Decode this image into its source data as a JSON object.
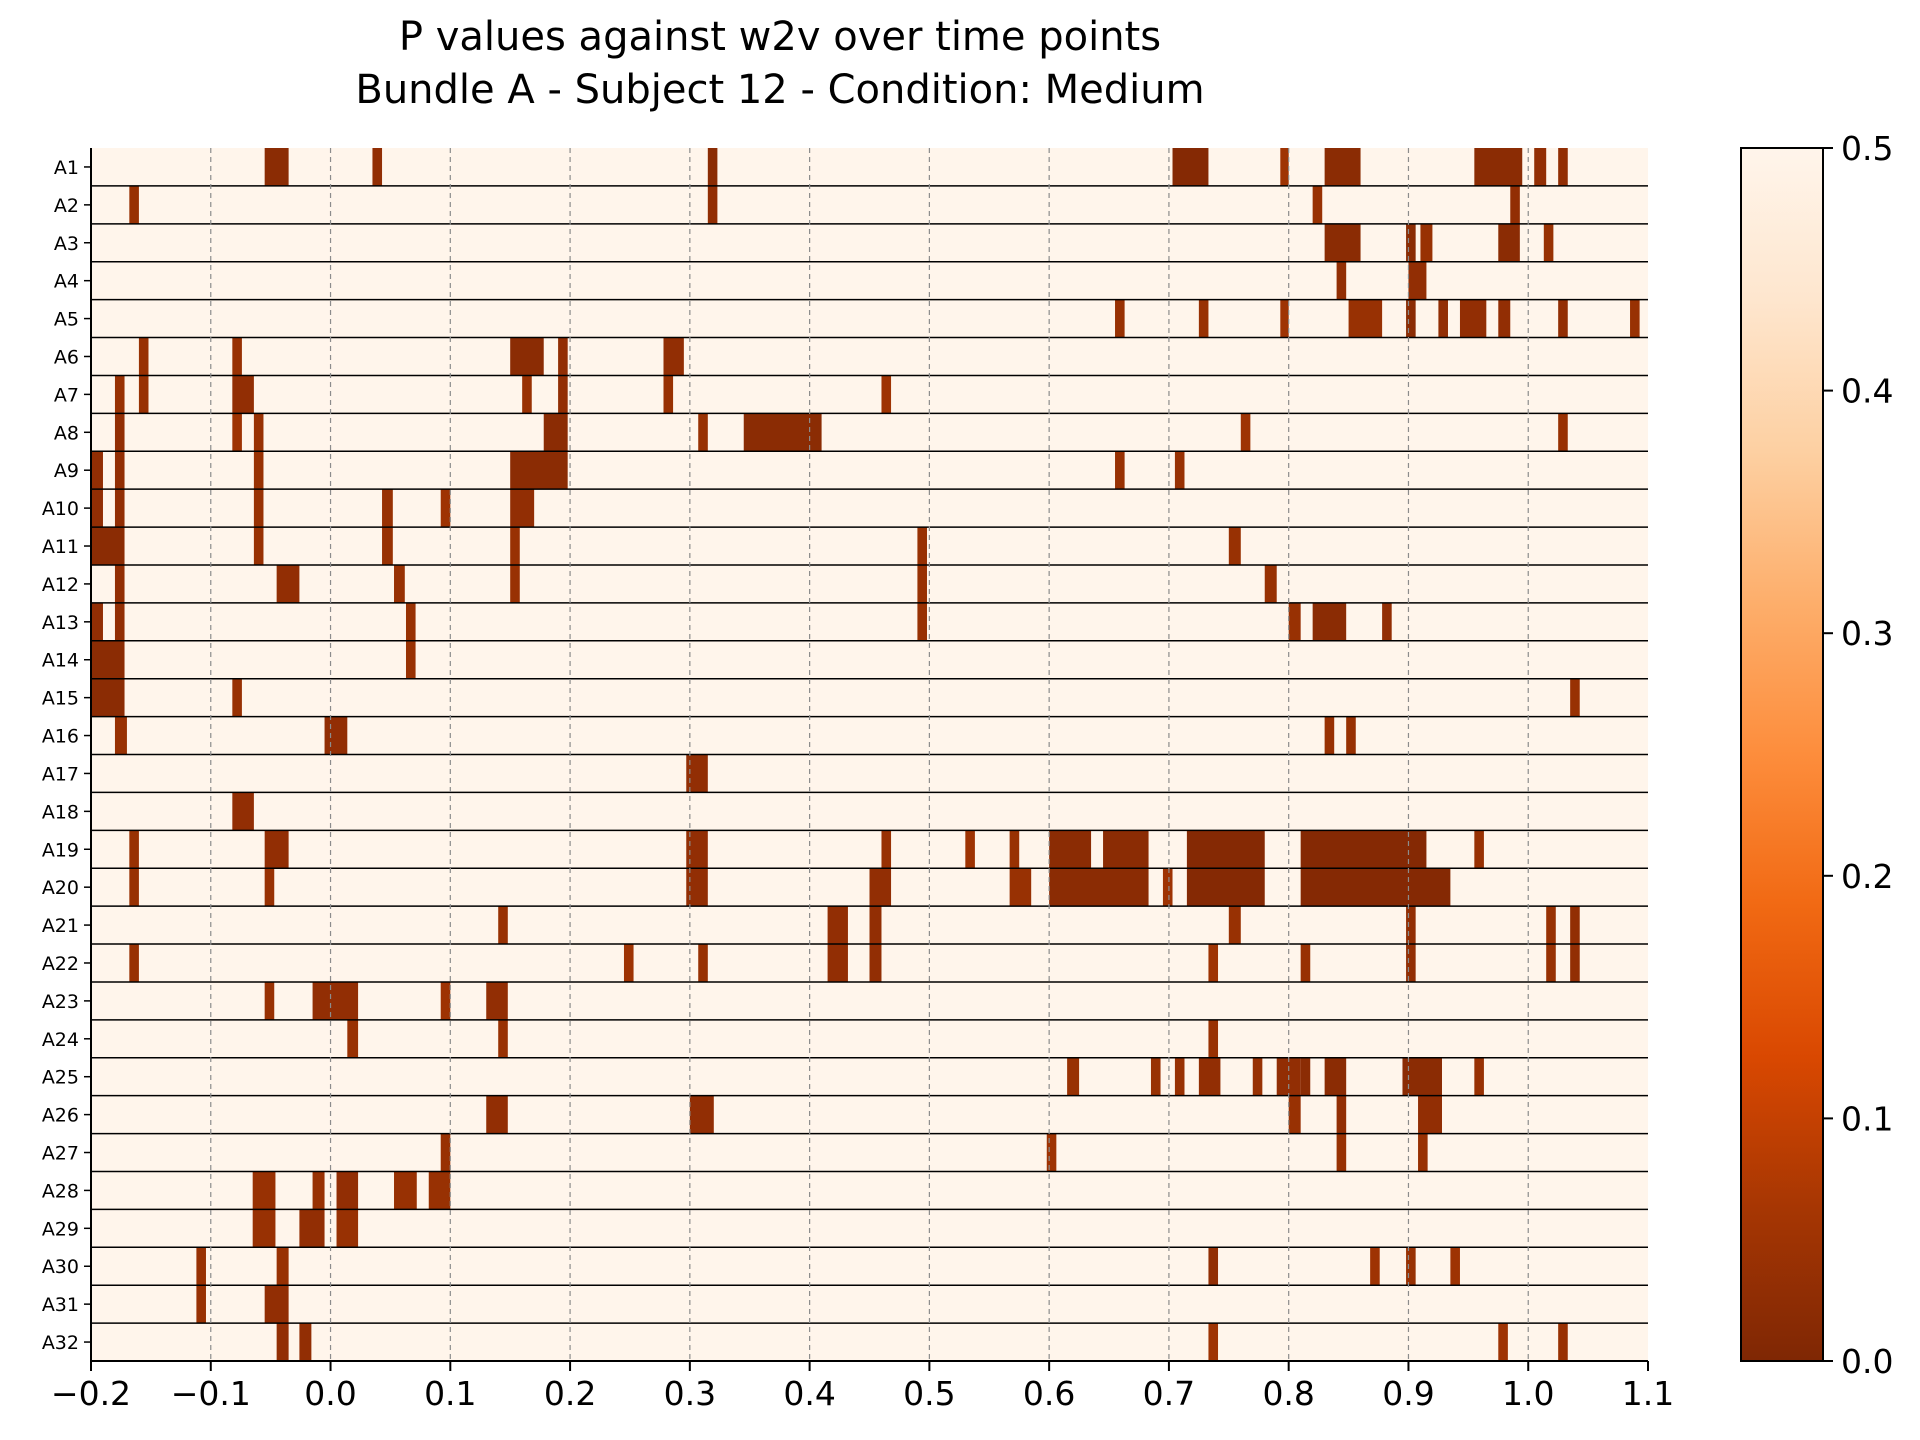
{
  "chart_data": {
    "type": "heatmap",
    "title": "P values against w2v over time points",
    "subtitle": "Bundle A - Subject 12 - Condition: Medium",
    "xlabel": "",
    "ylabel": "",
    "xlim": [
      -0.2,
      1.1
    ],
    "x_ticks": [
      "−0.2",
      "−0.1",
      "0.0",
      "0.1",
      "0.2",
      "0.3",
      "0.4",
      "0.5",
      "0.6",
      "0.7",
      "0.8",
      "0.9",
      "1.0",
      "1.1"
    ],
    "x_tick_values": [
      -0.2,
      -0.1,
      0.0,
      0.1,
      0.2,
      0.3,
      0.4,
      0.5,
      0.6,
      0.7,
      0.8,
      0.9,
      1.0,
      1.1
    ],
    "grid": "vertical dashed at x ticks",
    "colormap": "Oranges_r",
    "background_value": 0.5,
    "colorbar": {
      "range": [
        0.0,
        0.5
      ],
      "ticks": [
        "0.0",
        "0.1",
        "0.2",
        "0.3",
        "0.4",
        "0.5"
      ],
      "tick_values": [
        0.0,
        0.1,
        0.2,
        0.3,
        0.4,
        0.5
      ],
      "colors": [
        "#7f2704",
        "#a63603",
        "#d94801",
        "#f16913",
        "#fd8d3c",
        "#fdae6b",
        "#fdd0a2",
        "#fee6ce",
        "#fff5eb"
      ]
    },
    "rows": [
      {
        "label": "A1",
        "segments": [
          [
            -0.055,
            -0.035,
            0.02
          ],
          [
            0.035,
            0.043,
            0.03
          ],
          [
            0.315,
            0.323,
            0.02
          ],
          [
            0.703,
            0.733,
            0.01
          ],
          [
            0.793,
            0.8,
            0.05
          ],
          [
            0.83,
            0.86,
            0.02
          ],
          [
            0.955,
            0.995,
            0.02
          ],
          [
            1.005,
            1.015,
            0.03
          ],
          [
            1.025,
            1.033,
            0.03
          ]
        ]
      },
      {
        "label": "A2",
        "segments": [
          [
            -0.168,
            -0.16,
            0.04
          ],
          [
            0.315,
            0.323,
            0.03
          ],
          [
            0.82,
            0.828,
            0.04
          ],
          [
            0.985,
            0.993,
            0.03
          ]
        ]
      },
      {
        "label": "A3",
        "segments": [
          [
            0.83,
            0.86,
            0.02
          ],
          [
            0.898,
            0.906,
            0.02
          ],
          [
            0.91,
            0.92,
            0.04
          ],
          [
            0.975,
            0.993,
            0.02
          ],
          [
            1.013,
            1.021,
            0.04
          ]
        ]
      },
      {
        "label": "A4",
        "segments": [
          [
            0.84,
            0.848,
            0.03
          ],
          [
            0.9,
            0.915,
            0.03
          ]
        ]
      },
      {
        "label": "A5",
        "segments": [
          [
            0.655,
            0.663,
            0.04
          ],
          [
            0.725,
            0.733,
            0.04
          ],
          [
            0.793,
            0.8,
            0.05
          ],
          [
            0.85,
            0.878,
            0.04
          ],
          [
            0.898,
            0.906,
            0.02
          ],
          [
            0.925,
            0.933,
            0.03
          ],
          [
            0.943,
            0.965,
            0.03
          ],
          [
            0.975,
            0.985,
            0.03
          ],
          [
            1.025,
            1.033,
            0.03
          ],
          [
            1.085,
            1.093,
            0.04
          ]
        ]
      },
      {
        "label": "A6",
        "segments": [
          [
            -0.16,
            -0.152,
            0.04
          ],
          [
            -0.082,
            -0.074,
            0.04
          ],
          [
            0.15,
            0.178,
            0.02
          ],
          [
            0.19,
            0.198,
            0.03
          ],
          [
            0.278,
            0.295,
            0.03
          ]
        ]
      },
      {
        "label": "A7",
        "segments": [
          [
            -0.18,
            -0.172,
            0.04
          ],
          [
            -0.16,
            -0.152,
            0.04
          ],
          [
            -0.082,
            -0.064,
            0.03
          ],
          [
            0.16,
            0.168,
            0.04
          ],
          [
            0.19,
            0.198,
            0.03
          ],
          [
            0.278,
            0.286,
            0.04
          ],
          [
            0.46,
            0.468,
            0.05
          ]
        ]
      },
      {
        "label": "A8",
        "segments": [
          [
            -0.18,
            -0.172,
            0.03
          ],
          [
            -0.082,
            -0.074,
            0.05
          ],
          [
            -0.064,
            -0.056,
            0.04
          ],
          [
            0.178,
            0.198,
            0.02
          ],
          [
            0.307,
            0.315,
            0.04
          ],
          [
            0.345,
            0.41,
            0.02
          ],
          [
            0.76,
            0.768,
            0.05
          ],
          [
            1.025,
            1.033,
            0.04
          ]
        ]
      },
      {
        "label": "A9",
        "segments": [
          [
            -0.2,
            -0.19,
            0.03
          ],
          [
            -0.18,
            -0.172,
            0.03
          ],
          [
            -0.064,
            -0.056,
            0.04
          ],
          [
            0.15,
            0.198,
            0.02
          ],
          [
            0.655,
            0.663,
            0.04
          ],
          [
            0.705,
            0.713,
            0.04
          ]
        ]
      },
      {
        "label": "A10",
        "segments": [
          [
            -0.2,
            -0.19,
            0.03
          ],
          [
            -0.18,
            -0.172,
            0.03
          ],
          [
            -0.064,
            -0.056,
            0.04
          ],
          [
            0.043,
            0.052,
            0.04
          ],
          [
            0.092,
            0.1,
            0.05
          ],
          [
            0.15,
            0.17,
            0.03
          ]
        ]
      },
      {
        "label": "A11",
        "segments": [
          [
            -0.2,
            -0.172,
            0.02
          ],
          [
            -0.064,
            -0.056,
            0.04
          ],
          [
            0.043,
            0.052,
            0.04
          ],
          [
            0.15,
            0.158,
            0.04
          ],
          [
            0.49,
            0.498,
            0.04
          ],
          [
            0.75,
            0.76,
            0.04
          ]
        ]
      },
      {
        "label": "A12",
        "segments": [
          [
            -0.18,
            -0.172,
            0.03
          ],
          [
            -0.045,
            -0.026,
            0.03
          ],
          [
            0.053,
            0.062,
            0.04
          ],
          [
            0.15,
            0.158,
            0.04
          ],
          [
            0.49,
            0.498,
            0.04
          ],
          [
            0.78,
            0.79,
            0.04
          ]
        ]
      },
      {
        "label": "A13",
        "segments": [
          [
            -0.2,
            -0.19,
            0.03
          ],
          [
            -0.18,
            -0.172,
            0.03
          ],
          [
            0.063,
            0.071,
            0.04
          ],
          [
            0.49,
            0.498,
            0.04
          ],
          [
            0.8,
            0.81,
            0.04
          ],
          [
            0.82,
            0.848,
            0.02
          ],
          [
            0.878,
            0.886,
            0.03
          ]
        ]
      },
      {
        "label": "A14",
        "segments": [
          [
            -0.2,
            -0.172,
            0.02
          ],
          [
            0.063,
            0.071,
            0.04
          ]
        ]
      },
      {
        "label": "A15",
        "segments": [
          [
            -0.2,
            -0.172,
            0.02
          ],
          [
            -0.082,
            -0.074,
            0.04
          ],
          [
            1.035,
            1.043,
            0.04
          ]
        ]
      },
      {
        "label": "A16",
        "segments": [
          [
            -0.18,
            -0.17,
            0.04
          ],
          [
            -0.005,
            0.014,
            0.03
          ],
          [
            0.83,
            0.838,
            0.04
          ],
          [
            0.848,
            0.856,
            0.04
          ]
        ]
      },
      {
        "label": "A17",
        "segments": [
          [
            0.297,
            0.315,
            0.03
          ]
        ]
      },
      {
        "label": "A18",
        "segments": [
          [
            -0.082,
            -0.064,
            0.03
          ]
        ]
      },
      {
        "label": "A19",
        "segments": [
          [
            -0.168,
            -0.16,
            0.04
          ],
          [
            -0.055,
            -0.035,
            0.03
          ],
          [
            0.297,
            0.315,
            0.03
          ],
          [
            0.46,
            0.468,
            0.04
          ],
          [
            0.53,
            0.538,
            0.05
          ],
          [
            0.567,
            0.575,
            0.04
          ],
          [
            0.6,
            0.635,
            0.02
          ],
          [
            0.645,
            0.683,
            0.02
          ],
          [
            0.715,
            0.78,
            0.01
          ],
          [
            0.81,
            0.915,
            0.01
          ],
          [
            0.955,
            0.963,
            0.04
          ]
        ]
      },
      {
        "label": "A20",
        "segments": [
          [
            -0.168,
            -0.16,
            0.04
          ],
          [
            -0.055,
            -0.047,
            0.04
          ],
          [
            0.297,
            0.315,
            0.03
          ],
          [
            0.45,
            0.468,
            0.03
          ],
          [
            0.567,
            0.585,
            0.04
          ],
          [
            0.6,
            0.683,
            0.02
          ],
          [
            0.695,
            0.703,
            0.05
          ],
          [
            0.715,
            0.78,
            0.01
          ],
          [
            0.81,
            0.935,
            0.01
          ]
        ]
      },
      {
        "label": "A21",
        "segments": [
          [
            0.14,
            0.148,
            0.04
          ],
          [
            0.415,
            0.432,
            0.03
          ],
          [
            0.45,
            0.46,
            0.03
          ],
          [
            0.75,
            0.76,
            0.04
          ],
          [
            0.898,
            0.906,
            0.03
          ],
          [
            1.015,
            1.023,
            0.04
          ],
          [
            1.035,
            1.043,
            0.03
          ]
        ]
      },
      {
        "label": "A22",
        "segments": [
          [
            -0.168,
            -0.16,
            0.04
          ],
          [
            0.245,
            0.253,
            0.05
          ],
          [
            0.307,
            0.315,
            0.04
          ],
          [
            0.415,
            0.432,
            0.03
          ],
          [
            0.45,
            0.46,
            0.03
          ],
          [
            0.733,
            0.741,
            0.05
          ],
          [
            0.81,
            0.818,
            0.04
          ],
          [
            0.898,
            0.906,
            0.03
          ],
          [
            1.015,
            1.023,
            0.04
          ],
          [
            1.035,
            1.043,
            0.03
          ]
        ]
      },
      {
        "label": "A23",
        "segments": [
          [
            -0.055,
            -0.047,
            0.04
          ],
          [
            -0.015,
            0.023,
            0.03
          ],
          [
            0.092,
            0.1,
            0.05
          ],
          [
            0.13,
            0.148,
            0.03
          ]
        ]
      },
      {
        "label": "A24",
        "segments": [
          [
            0.014,
            0.023,
            0.04
          ],
          [
            0.14,
            0.148,
            0.04
          ],
          [
            0.733,
            0.741,
            0.04
          ]
        ]
      },
      {
        "label": "A25",
        "segments": [
          [
            0.615,
            0.625,
            0.04
          ],
          [
            0.685,
            0.693,
            0.04
          ],
          [
            0.705,
            0.713,
            0.04
          ],
          [
            0.725,
            0.743,
            0.03
          ],
          [
            0.77,
            0.778,
            0.04
          ],
          [
            0.79,
            0.81,
            0.03
          ],
          [
            0.81,
            0.818,
            0.02
          ],
          [
            0.83,
            0.848,
            0.02
          ],
          [
            0.895,
            0.928,
            0.02
          ],
          [
            0.955,
            0.963,
            0.04
          ]
        ]
      },
      {
        "label": "A26",
        "segments": [
          [
            0.13,
            0.148,
            0.03
          ],
          [
            0.3,
            0.32,
            0.03
          ],
          [
            0.8,
            0.81,
            0.04
          ],
          [
            0.84,
            0.848,
            0.03
          ],
          [
            0.908,
            0.928,
            0.03
          ]
        ]
      },
      {
        "label": "A27",
        "segments": [
          [
            0.092,
            0.1,
            0.04
          ],
          [
            0.598,
            0.606,
            0.05
          ],
          [
            0.84,
            0.848,
            0.04
          ],
          [
            0.908,
            0.916,
            0.04
          ]
        ]
      },
      {
        "label": "A28",
        "segments": [
          [
            -0.065,
            -0.046,
            0.04
          ],
          [
            -0.015,
            -0.005,
            0.04
          ],
          [
            0.005,
            0.023,
            0.03
          ],
          [
            0.053,
            0.072,
            0.04
          ],
          [
            0.082,
            0.1,
            0.04
          ]
        ]
      },
      {
        "label": "A29",
        "segments": [
          [
            -0.065,
            -0.046,
            0.04
          ],
          [
            -0.026,
            -0.005,
            0.03
          ],
          [
            0.005,
            0.023,
            0.04
          ]
        ]
      },
      {
        "label": "A30",
        "segments": [
          [
            -0.112,
            -0.104,
            0.04
          ],
          [
            -0.045,
            -0.035,
            0.04
          ],
          [
            0.733,
            0.741,
            0.03
          ],
          [
            0.868,
            0.876,
            0.05
          ],
          [
            0.898,
            0.906,
            0.04
          ],
          [
            0.935,
            0.943,
            0.05
          ]
        ]
      },
      {
        "label": "A31",
        "segments": [
          [
            -0.112,
            -0.104,
            0.04
          ],
          [
            -0.055,
            -0.035,
            0.03
          ]
        ]
      },
      {
        "label": "A32",
        "segments": [
          [
            -0.045,
            -0.035,
            0.03
          ],
          [
            -0.026,
            -0.016,
            0.03
          ],
          [
            0.733,
            0.741,
            0.05
          ],
          [
            0.975,
            0.983,
            0.05
          ],
          [
            1.025,
            1.033,
            0.04
          ]
        ]
      }
    ]
  }
}
